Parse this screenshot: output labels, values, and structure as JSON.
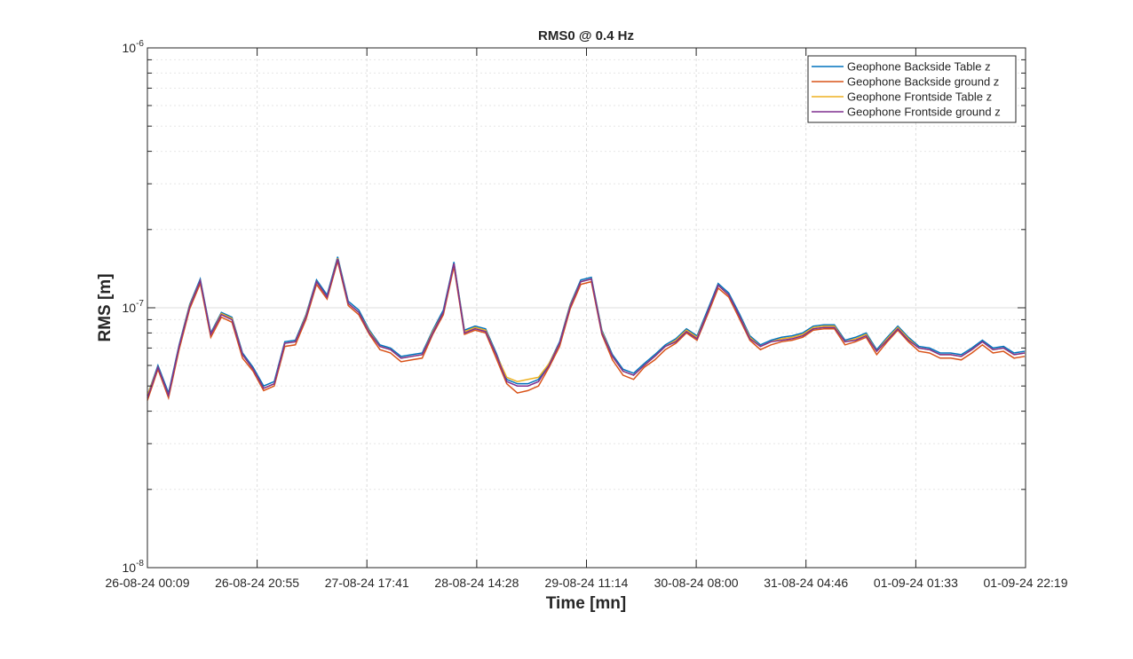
{
  "chart_data": {
    "type": "line",
    "title": "RMS0 @ 0.4 Hz",
    "xlabel": "Time [mn]",
    "ylabel": "RMS [m]",
    "log_y": true,
    "grid": true,
    "minor_grid": true,
    "legend_loc": "upper right",
    "x": [
      "26-08-24 00:09",
      "26-08-24 02:09",
      "26-08-24 04:09",
      "26-08-24 06:09",
      "26-08-24 08:09",
      "26-08-24 10:09",
      "26-08-24 12:09",
      "26-08-24 14:09",
      "26-08-24 16:09",
      "26-08-24 18:09",
      "26-08-24 20:09",
      "26-08-24 22:09",
      "27-08-24 00:09",
      "27-08-24 02:09",
      "27-08-24 04:09",
      "27-08-24 06:09",
      "27-08-24 08:09",
      "27-08-24 10:09",
      "27-08-24 12:09",
      "27-08-24 14:09",
      "27-08-24 16:09",
      "27-08-24 18:09",
      "27-08-24 20:09",
      "27-08-24 22:09",
      "28-08-24 00:09",
      "28-08-24 02:09",
      "28-08-24 04:09",
      "28-08-24 06:09",
      "28-08-24 08:09",
      "28-08-24 10:09",
      "28-08-24 12:09",
      "28-08-24 14:09",
      "28-08-24 16:09",
      "28-08-24 18:09",
      "28-08-24 20:09",
      "28-08-24 22:09",
      "29-08-24 00:09",
      "29-08-24 02:09",
      "29-08-24 04:09",
      "29-08-24 06:09",
      "29-08-24 08:09",
      "29-08-24 10:09",
      "29-08-24 12:09",
      "29-08-24 14:09",
      "29-08-24 16:09",
      "29-08-24 18:09",
      "29-08-24 20:09",
      "29-08-24 22:09",
      "30-08-24 00:09",
      "30-08-24 02:09",
      "30-08-24 04:09",
      "30-08-24 06:09",
      "30-08-24 08:09",
      "30-08-24 10:09",
      "30-08-24 12:09",
      "30-08-24 14:09",
      "30-08-24 16:09",
      "30-08-24 18:09",
      "30-08-24 20:09",
      "30-08-24 22:09",
      "31-08-24 00:09",
      "31-08-24 02:09",
      "31-08-24 04:09",
      "31-08-24 06:09",
      "31-08-24 08:09",
      "31-08-24 10:09",
      "31-08-24 12:09",
      "31-08-24 14:09",
      "31-08-24 16:09",
      "31-08-24 18:09",
      "31-08-24 20:09",
      "31-08-24 22:09",
      "01-09-24 00:09",
      "01-09-24 02:09",
      "01-09-24 04:09",
      "01-09-24 06:09",
      "01-09-24 08:09",
      "01-09-24 10:09",
      "01-09-24 12:09",
      "01-09-24 14:09",
      "01-09-24 16:09",
      "01-09-24 18:09",
      "01-09-24 20:09",
      "01-09-24 22:09"
    ],
    "xlim": [
      "26-08-24 00:09",
      "01-09-24 22:19"
    ],
    "xticks": [
      "26-08-24 00:09",
      "26-08-24 20:55",
      "27-08-24 17:41",
      "28-08-24 14:28",
      "29-08-24 11:14",
      "30-08-24 08:00",
      "31-08-24 04:46",
      "01-09-24 01:33",
      "01-09-24 22:19"
    ],
    "ylim": [
      1e-08,
      1e-06
    ],
    "yticks": [
      {
        "value": 1e-08,
        "label": "10^-8"
      },
      {
        "value": 1e-07,
        "label": "10^-7"
      },
      {
        "value": 1e-06,
        "label": "10^-6"
      }
    ],
    "series": [
      {
        "name": "Geophone Backside Table z",
        "color": "#0072bd",
        "values": [
          4.6e-08,
          6e-08,
          4.7e-08,
          7.2e-08,
          1.03e-07,
          1.29e-07,
          8e-08,
          9.6e-08,
          9.2e-08,
          6.7e-08,
          5.9e-08,
          5e-08,
          5.2e-08,
          7.4e-08,
          7.5e-08,
          9.4e-08,
          1.28e-07,
          1.12e-07,
          1.57e-07,
          1.06e-07,
          9.8e-08,
          8.2e-08,
          7.2e-08,
          7e-08,
          6.5e-08,
          6.6e-08,
          6.7e-08,
          8.2e-08,
          9.8e-08,
          1.5e-07,
          8.2e-08,
          8.5e-08,
          8.3e-08,
          6.7e-08,
          5.3e-08,
          5.1e-08,
          5.1e-08,
          5.3e-08,
          6.1e-08,
          7.4e-08,
          1.03e-07,
          1.28e-07,
          1.31e-07,
          8.2e-08,
          6.6e-08,
          5.8e-08,
          5.6e-08,
          6.1e-08,
          6.6e-08,
          7.2e-08,
          7.6e-08,
          8.3e-08,
          7.8e-08,
          9.8e-08,
          1.24e-07,
          1.14e-07,
          9.5e-08,
          7.8e-08,
          7.2e-08,
          7.5e-08,
          7.7e-08,
          7.8e-08,
          8e-08,
          8.5e-08,
          8.6e-08,
          8.6e-08,
          7.5e-08,
          7.7e-08,
          8e-08,
          6.9e-08,
          7.7e-08,
          8.5e-08,
          7.7e-08,
          7.1e-08,
          7e-08,
          6.7e-08,
          6.7e-08,
          6.6e-08,
          7e-08,
          7.5e-08,
          7e-08,
          7.1e-08,
          6.7e-08,
          6.8e-08
        ]
      },
      {
        "name": "Geophone Backside ground z",
        "color": "#d95319",
        "values": [
          4.4e-08,
          5.8e-08,
          4.5e-08,
          6.9e-08,
          9.9e-08,
          1.24e-07,
          7.7e-08,
          9.2e-08,
          8.8e-08,
          6.4e-08,
          5.7e-08,
          4.8e-08,
          5e-08,
          7.1e-08,
          7.2e-08,
          9e-08,
          1.23e-07,
          1.08e-07,
          1.51e-07,
          1.02e-07,
          9.4e-08,
          7.9e-08,
          6.9e-08,
          6.7e-08,
          6.2e-08,
          6.3e-08,
          6.4e-08,
          7.9e-08,
          9.4e-08,
          1.44e-07,
          7.9e-08,
          8.2e-08,
          8e-08,
          6.4e-08,
          5.1e-08,
          4.7e-08,
          4.8e-08,
          5e-08,
          5.9e-08,
          7.1e-08,
          9.9e-08,
          1.23e-07,
          1.26e-07,
          7.9e-08,
          6.3e-08,
          5.5e-08,
          5.3e-08,
          5.9e-08,
          6.3e-08,
          6.9e-08,
          7.3e-08,
          8e-08,
          7.5e-08,
          9.4e-08,
          1.19e-07,
          1.1e-07,
          9.1e-08,
          7.5e-08,
          6.9e-08,
          7.2e-08,
          7.4e-08,
          7.5e-08,
          7.7e-08,
          8.2e-08,
          8.3e-08,
          8.3e-08,
          7.2e-08,
          7.4e-08,
          7.7e-08,
          6.6e-08,
          7.4e-08,
          8.2e-08,
          7.4e-08,
          6.8e-08,
          6.7e-08,
          6.4e-08,
          6.4e-08,
          6.3e-08,
          6.7e-08,
          7.2e-08,
          6.7e-08,
          6.8e-08,
          6.4e-08,
          6.5e-08
        ]
      },
      {
        "name": "Geophone Frontside Table z",
        "color": "#edb120",
        "values": [
          4.6e-08,
          5.9e-08,
          4.6e-08,
          7.1e-08,
          1.02e-07,
          1.27e-07,
          7.9e-08,
          9.5e-08,
          9.1e-08,
          6.6e-08,
          5.8e-08,
          4.9e-08,
          5.1e-08,
          7.3e-08,
          7.4e-08,
          9.3e-08,
          1.26e-07,
          1.1e-07,
          1.55e-07,
          1.04e-07,
          9.6e-08,
          8.1e-08,
          7.1e-08,
          6.9e-08,
          6.4e-08,
          6.5e-08,
          6.6e-08,
          8.1e-08,
          9.6e-08,
          1.48e-07,
          8.1e-08,
          8.4e-08,
          8.2e-08,
          6.6e-08,
          5.4e-08,
          5.2e-08,
          5.3e-08,
          5.4e-08,
          6.1e-08,
          7.3e-08,
          1.02e-07,
          1.26e-07,
          1.29e-07,
          8.1e-08,
          6.5e-08,
          5.7e-08,
          5.5e-08,
          6e-08,
          6.5e-08,
          7.1e-08,
          7.5e-08,
          8.2e-08,
          7.7e-08,
          9.6e-08,
          1.22e-07,
          1.12e-07,
          9.3e-08,
          7.7e-08,
          7.1e-08,
          7.4e-08,
          7.6e-08,
          7.7e-08,
          7.9e-08,
          8.4e-08,
          8.5e-08,
          8.5e-08,
          7.4e-08,
          7.6e-08,
          7.9e-08,
          6.8e-08,
          7.6e-08,
          8.4e-08,
          7.6e-08,
          7e-08,
          6.9e-08,
          6.6e-08,
          6.6e-08,
          6.5e-08,
          6.9e-08,
          7.4e-08,
          6.9e-08,
          7e-08,
          6.6e-08,
          6.7e-08
        ]
      },
      {
        "name": "Geophone Frontside ground z",
        "color": "#7e2f8e",
        "values": [
          4.5e-08,
          5.9e-08,
          4.6e-08,
          7.1e-08,
          1.01e-07,
          1.27e-07,
          7.9e-08,
          9.4e-08,
          9e-08,
          6.6e-08,
          5.8e-08,
          4.9e-08,
          5.1e-08,
          7.3e-08,
          7.4e-08,
          9.2e-08,
          1.26e-07,
          1.1e-07,
          1.54e-07,
          1.04e-07,
          9.6e-08,
          8e-08,
          7.1e-08,
          6.9e-08,
          6.4e-08,
          6.5e-08,
          6.6e-08,
          8e-08,
          9.6e-08,
          1.48e-07,
          8e-08,
          8.3e-08,
          8.1e-08,
          6.6e-08,
          5.2e-08,
          5e-08,
          5e-08,
          5.2e-08,
          6e-08,
          7.3e-08,
          1.01e-07,
          1.26e-07,
          1.29e-07,
          8e-08,
          6.5e-08,
          5.7e-08,
          5.5e-08,
          6e-08,
          6.5e-08,
          7.1e-08,
          7.4e-08,
          8.1e-08,
          7.6e-08,
          9.6e-08,
          1.22e-07,
          1.12e-07,
          9.3e-08,
          7.6e-08,
          7.1e-08,
          7.4e-08,
          7.5e-08,
          7.6e-08,
          7.8e-08,
          8.3e-08,
          8.4e-08,
          8.4e-08,
          7.4e-08,
          7.5e-08,
          7.8e-08,
          6.8e-08,
          7.5e-08,
          8.3e-08,
          7.5e-08,
          7e-08,
          6.9e-08,
          6.6e-08,
          6.6e-08,
          6.5e-08,
          6.9e-08,
          7.4e-08,
          6.9e-08,
          7e-08,
          6.6e-08,
          6.7e-08
        ]
      }
    ]
  }
}
